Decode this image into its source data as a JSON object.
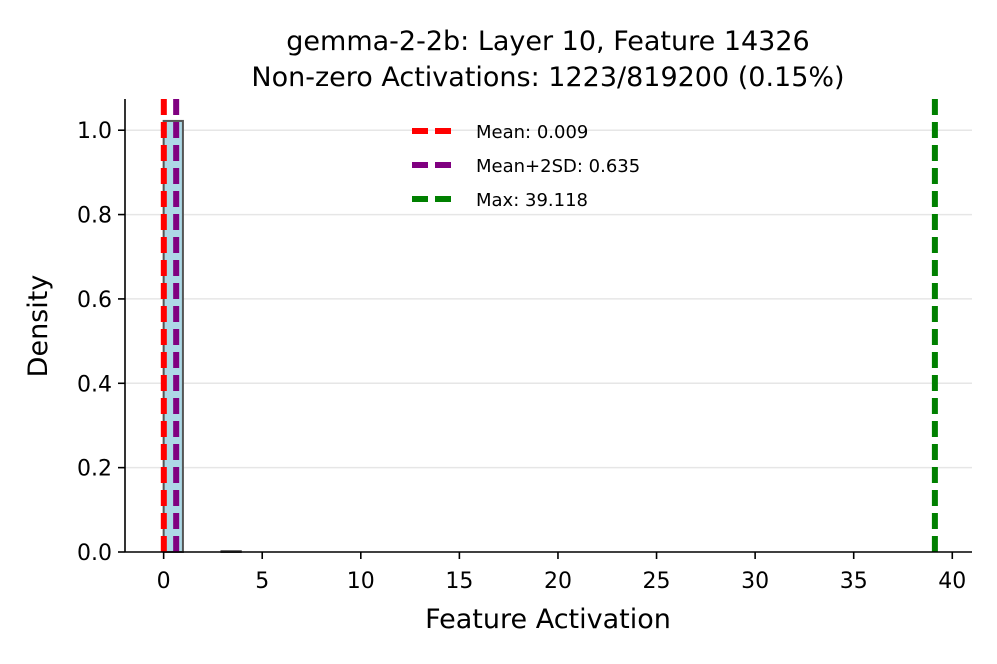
{
  "chart_data": {
    "type": "histogram",
    "title": [
      "gemma-2-2b: Layer 10, Feature 14326",
      "Non-zero Activations: 1223/819200 (0.15%)"
    ],
    "xlabel": "Feature Activation",
    "ylabel": "Density",
    "xlim": [
      -1.96,
      41.0
    ],
    "ylim": [
      0,
      1.074
    ],
    "xticks": [
      0,
      5,
      10,
      15,
      20,
      25,
      30,
      35,
      40
    ],
    "yticks": [
      0.0,
      0.2,
      0.4,
      0.6,
      0.8,
      1.0
    ],
    "ytick_labels": [
      "0.0",
      "0.2",
      "0.4",
      "0.6",
      "0.8",
      "1.0"
    ],
    "grid": "y",
    "bins": [
      {
        "x0": 0.0,
        "x1": 0.978,
        "density": 1.022
      },
      {
        "x0": 2.934,
        "x1": 3.912,
        "density": 0.002
      }
    ],
    "bar_color": "#add8e6",
    "bar_edge_color": "#555555",
    "reference_lines": [
      {
        "label": "Mean: 0.009",
        "x": 0.009,
        "color": "#ff0000"
      },
      {
        "label": "Mean+2SD: 0.635",
        "x": 0.635,
        "color": "#800080"
      },
      {
        "label": "Max: 39.118",
        "x": 39.118,
        "color": "#008000"
      }
    ],
    "legend_position": "top-center"
  }
}
